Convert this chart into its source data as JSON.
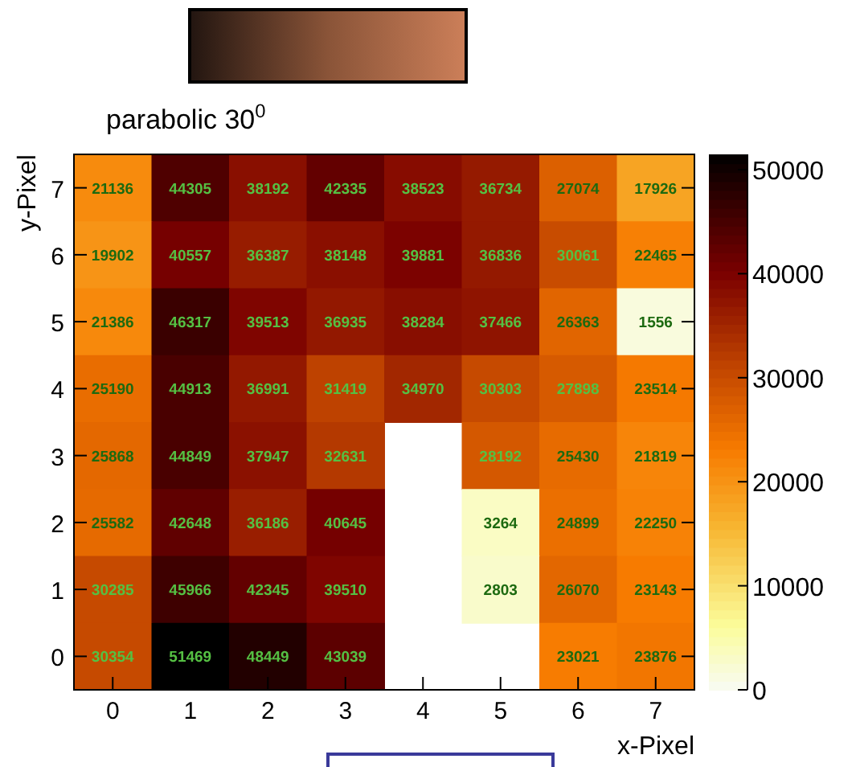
{
  "chart_data": {
    "type": "heatmap",
    "title": "parabolic 30$^{0}$",
    "xlabel": "x-Pixel",
    "ylabel": "y-Pixel",
    "categories": [
      "0",
      "1",
      "2",
      "3",
      "4",
      "5",
      "6",
      "7"
    ],
    "y_categories": [
      "7",
      "6",
      "5",
      "4",
      "3",
      "2",
      "1",
      "0"
    ],
    "cells": [
      [
        21136,
        44305,
        38192,
        42335,
        38523,
        36734,
        27074,
        17926
      ],
      [
        19902,
        40557,
        36387,
        38148,
        39881,
        36836,
        30061,
        22465
      ],
      [
        21386,
        46317,
        39513,
        36935,
        38284,
        37466,
        26363,
        1556
      ],
      [
        25190,
        44913,
        36991,
        31419,
        34970,
        30303,
        27898,
        23514
      ],
      [
        25868,
        44849,
        37947,
        32631,
        null,
        28192,
        25430,
        21819
      ],
      [
        25582,
        42648,
        36186,
        40645,
        null,
        3264,
        24899,
        22250
      ],
      [
        30285,
        45966,
        42345,
        39510,
        null,
        2803,
        26070,
        23143
      ],
      [
        30354,
        51469,
        48449,
        43039,
        null,
        null,
        23021,
        23876
      ]
    ],
    "data_labels": true,
    "clim": [
      0,
      51469
    ],
    "cticks": [
      0,
      10000,
      20000,
      30000,
      40000,
      50000
    ]
  }
}
